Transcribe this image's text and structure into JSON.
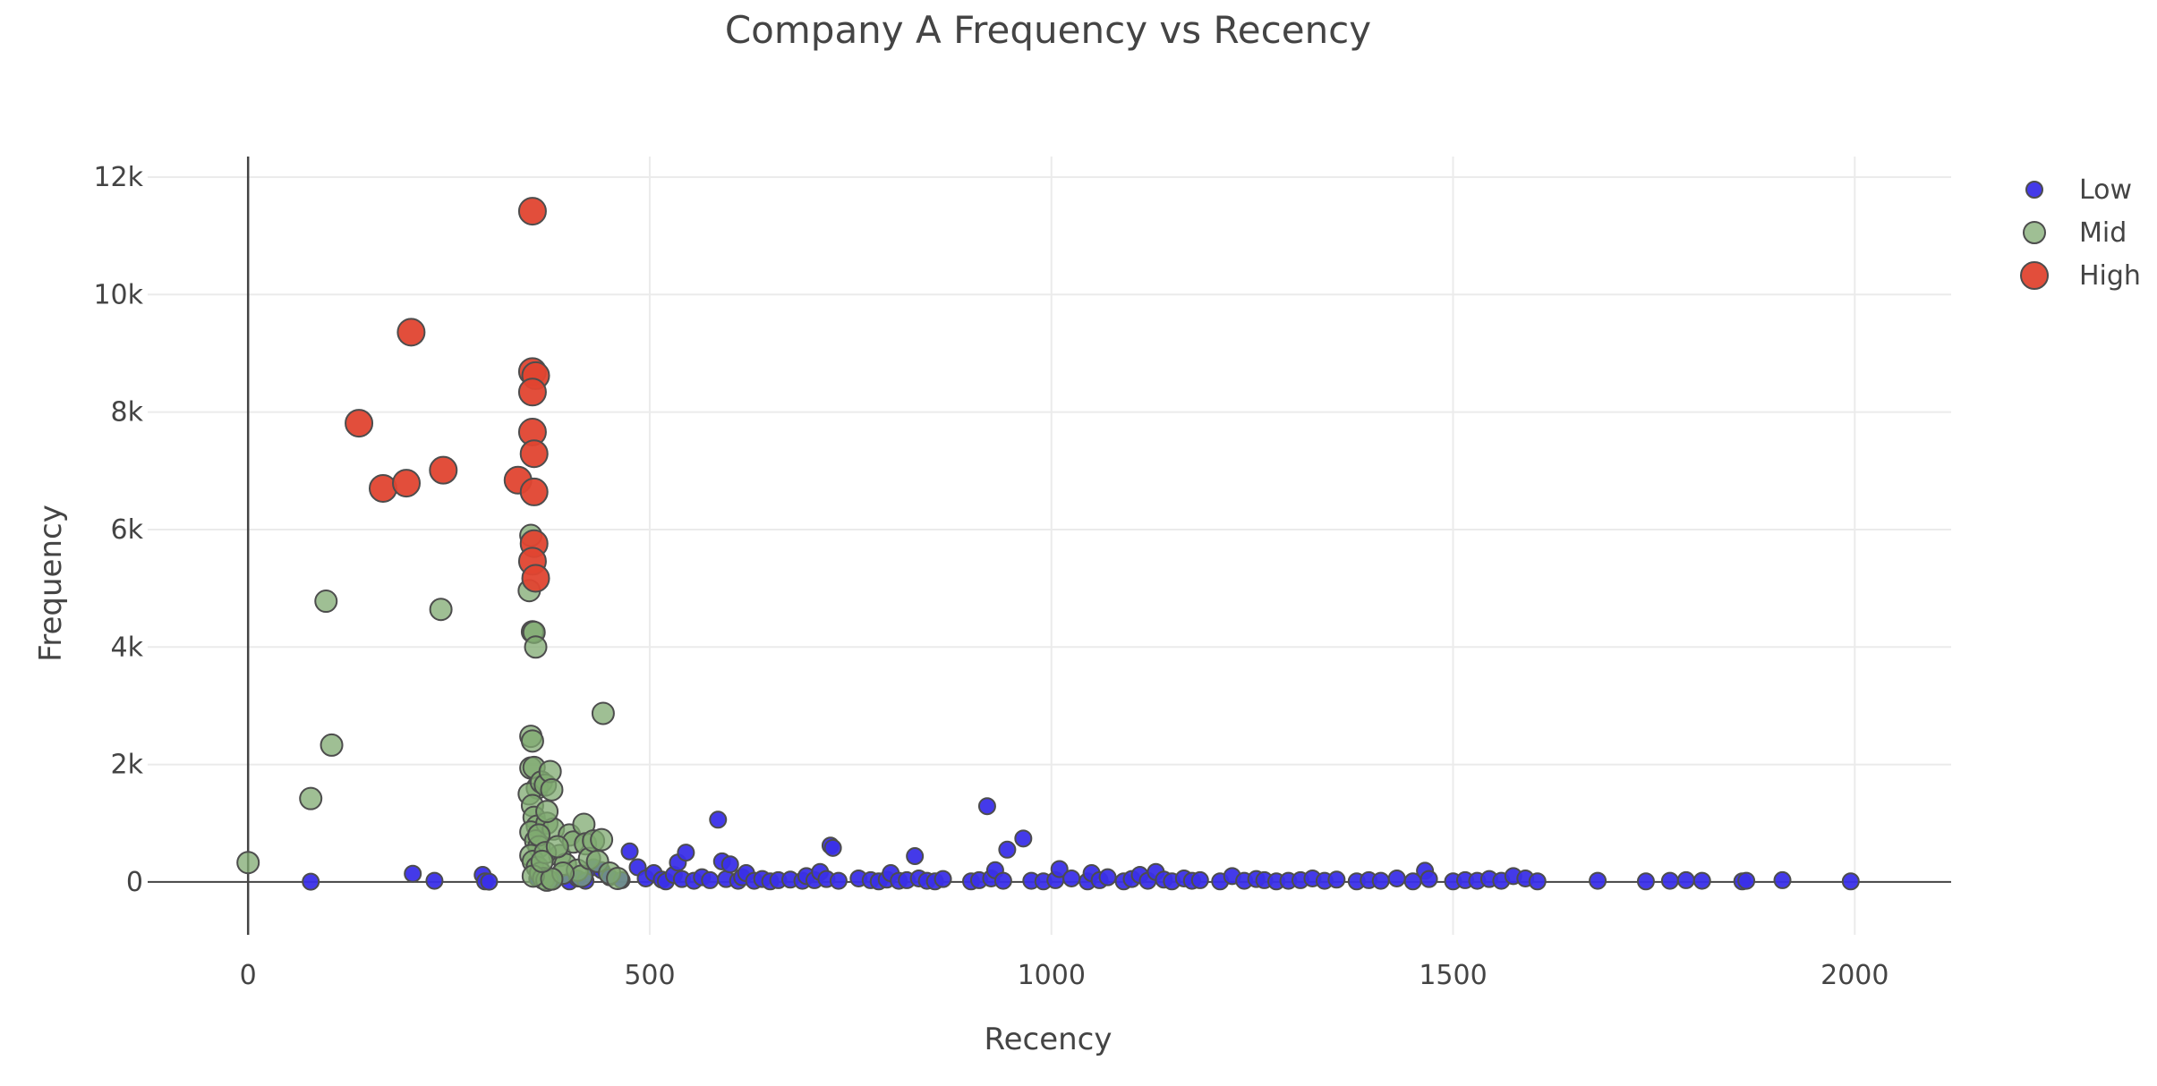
{
  "chart_data": {
    "type": "scatter",
    "title": "Company A Frequency vs Recency",
    "xlabel": "Recency",
    "ylabel": "Frequency",
    "xlim": [
      -125,
      2120
    ],
    "ylim": [
      -900,
      12350
    ],
    "xticks": [
      0,
      500,
      1000,
      1500,
      2000
    ],
    "xtick_labels": [
      "0",
      "500",
      "1000",
      "1500",
      "2000"
    ],
    "yticks": [
      0,
      2000,
      4000,
      6000,
      8000,
      10000,
      12000
    ],
    "ytick_labels": [
      "0",
      "2k",
      "4k",
      "6k",
      "8k",
      "10k",
      "12k"
    ],
    "grid": true,
    "legend_position": "top-right",
    "series": [
      {
        "name": "Low",
        "color": "#3a2fe8",
        "points": [
          [
            78,
            5
          ],
          [
            205,
            140
          ],
          [
            232,
            20
          ],
          [
            292,
            120
          ],
          [
            295,
            10
          ],
          [
            300,
            5
          ],
          [
            360,
            60
          ],
          [
            380,
            30
          ],
          [
            400,
            10
          ],
          [
            410,
            60
          ],
          [
            420,
            20
          ],
          [
            430,
            250
          ],
          [
            440,
            200
          ],
          [
            450,
            80
          ],
          [
            465,
            30
          ],
          [
            475,
            520
          ],
          [
            485,
            250
          ],
          [
            495,
            60
          ],
          [
            505,
            150
          ],
          [
            515,
            40
          ],
          [
            520,
            10
          ],
          [
            530,
            120
          ],
          [
            535,
            330
          ],
          [
            540,
            50
          ],
          [
            545,
            500
          ],
          [
            555,
            20
          ],
          [
            565,
            80
          ],
          [
            575,
            30
          ],
          [
            585,
            1060
          ],
          [
            590,
            350
          ],
          [
            595,
            50
          ],
          [
            600,
            300
          ],
          [
            610,
            20
          ],
          [
            615,
            80
          ],
          [
            620,
            150
          ],
          [
            630,
            20
          ],
          [
            640,
            50
          ],
          [
            650,
            10
          ],
          [
            660,
            30
          ],
          [
            675,
            40
          ],
          [
            690,
            20
          ],
          [
            695,
            100
          ],
          [
            705,
            30
          ],
          [
            712,
            170
          ],
          [
            720,
            50
          ],
          [
            725,
            620
          ],
          [
            728,
            580
          ],
          [
            735,
            20
          ],
          [
            760,
            60
          ],
          [
            775,
            30
          ],
          [
            785,
            10
          ],
          [
            795,
            40
          ],
          [
            800,
            150
          ],
          [
            810,
            20
          ],
          [
            820,
            30
          ],
          [
            830,
            440
          ],
          [
            835,
            60
          ],
          [
            845,
            20
          ],
          [
            855,
            10
          ],
          [
            865,
            50
          ],
          [
            900,
            10
          ],
          [
            910,
            30
          ],
          [
            920,
            1290
          ],
          [
            925,
            60
          ],
          [
            930,
            200
          ],
          [
            940,
            20
          ],
          [
            945,
            550
          ],
          [
            965,
            740
          ],
          [
            975,
            20
          ],
          [
            990,
            10
          ],
          [
            1005,
            30
          ],
          [
            1010,
            220
          ],
          [
            1025,
            60
          ],
          [
            1045,
            10
          ],
          [
            1050,
            150
          ],
          [
            1060,
            30
          ],
          [
            1070,
            80
          ],
          [
            1090,
            10
          ],
          [
            1100,
            50
          ],
          [
            1110,
            120
          ],
          [
            1120,
            20
          ],
          [
            1130,
            170
          ],
          [
            1140,
            40
          ],
          [
            1150,
            10
          ],
          [
            1165,
            60
          ],
          [
            1175,
            20
          ],
          [
            1185,
            30
          ],
          [
            1210,
            10
          ],
          [
            1225,
            100
          ],
          [
            1240,
            20
          ],
          [
            1255,
            50
          ],
          [
            1265,
            30
          ],
          [
            1280,
            10
          ],
          [
            1295,
            20
          ],
          [
            1310,
            30
          ],
          [
            1325,
            60
          ],
          [
            1340,
            20
          ],
          [
            1355,
            40
          ],
          [
            1380,
            10
          ],
          [
            1395,
            30
          ],
          [
            1410,
            20
          ],
          [
            1430,
            60
          ],
          [
            1450,
            10
          ],
          [
            1465,
            190
          ],
          [
            1470,
            50
          ],
          [
            1500,
            10
          ],
          [
            1515,
            30
          ],
          [
            1530,
            20
          ],
          [
            1545,
            50
          ],
          [
            1560,
            20
          ],
          [
            1575,
            100
          ],
          [
            1590,
            60
          ],
          [
            1605,
            10
          ],
          [
            1680,
            20
          ],
          [
            1740,
            10
          ],
          [
            1770,
            20
          ],
          [
            1790,
            30
          ],
          [
            1810,
            20
          ],
          [
            1860,
            10
          ],
          [
            1865,
            20
          ],
          [
            1910,
            30
          ],
          [
            1995,
            10
          ]
        ]
      },
      {
        "name": "Mid",
        "color": "#7faa70",
        "points": [
          [
            0,
            330
          ],
          [
            78,
            1420
          ],
          [
            97,
            4780
          ],
          [
            104,
            2330
          ],
          [
            240,
            4640
          ],
          [
            350,
            4960
          ],
          [
            352,
            5900
          ],
          [
            354,
            4260
          ],
          [
            356,
            4250
          ],
          [
            358,
            4000
          ],
          [
            352,
            2480
          ],
          [
            354,
            2400
          ],
          [
            352,
            1940
          ],
          [
            356,
            1950
          ],
          [
            360,
            1600
          ],
          [
            350,
            1500
          ],
          [
            354,
            1300
          ],
          [
            356,
            1100
          ],
          [
            360,
            950
          ],
          [
            352,
            850
          ],
          [
            358,
            700
          ],
          [
            362,
            600
          ],
          [
            352,
            450
          ],
          [
            355,
            350
          ],
          [
            360,
            250
          ],
          [
            364,
            150
          ],
          [
            368,
            60
          ],
          [
            372,
            30
          ],
          [
            365,
            1700
          ],
          [
            370,
            1650
          ],
          [
            376,
            1880
          ],
          [
            378,
            1570
          ],
          [
            372,
            1000
          ],
          [
            380,
            900
          ],
          [
            388,
            450
          ],
          [
            395,
            300
          ],
          [
            400,
            800
          ],
          [
            405,
            680
          ],
          [
            410,
            200
          ],
          [
            415,
            100
          ],
          [
            418,
            980
          ],
          [
            420,
            650
          ],
          [
            425,
            400
          ],
          [
            430,
            700
          ],
          [
            435,
            350
          ],
          [
            440,
            720
          ],
          [
            442,
            2870
          ],
          [
            450,
            150
          ],
          [
            460,
            60
          ],
          [
            362,
            800
          ],
          [
            370,
            500
          ],
          [
            385,
            600
          ],
          [
            392,
            150
          ],
          [
            355,
            100
          ],
          [
            378,
            50
          ],
          [
            366,
            350
          ],
          [
            372,
            1200
          ]
        ]
      },
      {
        "name": "High",
        "color": "#e04530",
        "points": [
          [
            138,
            7810
          ],
          [
            168,
            6700
          ],
          [
            197,
            6790
          ],
          [
            203,
            9360
          ],
          [
            243,
            7010
          ],
          [
            336,
            6840
          ],
          [
            354,
            11420
          ],
          [
            354,
            8690
          ],
          [
            358,
            8620
          ],
          [
            354,
            8340
          ],
          [
            354,
            7660
          ],
          [
            356,
            7290
          ],
          [
            356,
            6640
          ],
          [
            356,
            5760
          ],
          [
            354,
            5460
          ],
          [
            358,
            5170
          ]
        ]
      }
    ]
  }
}
